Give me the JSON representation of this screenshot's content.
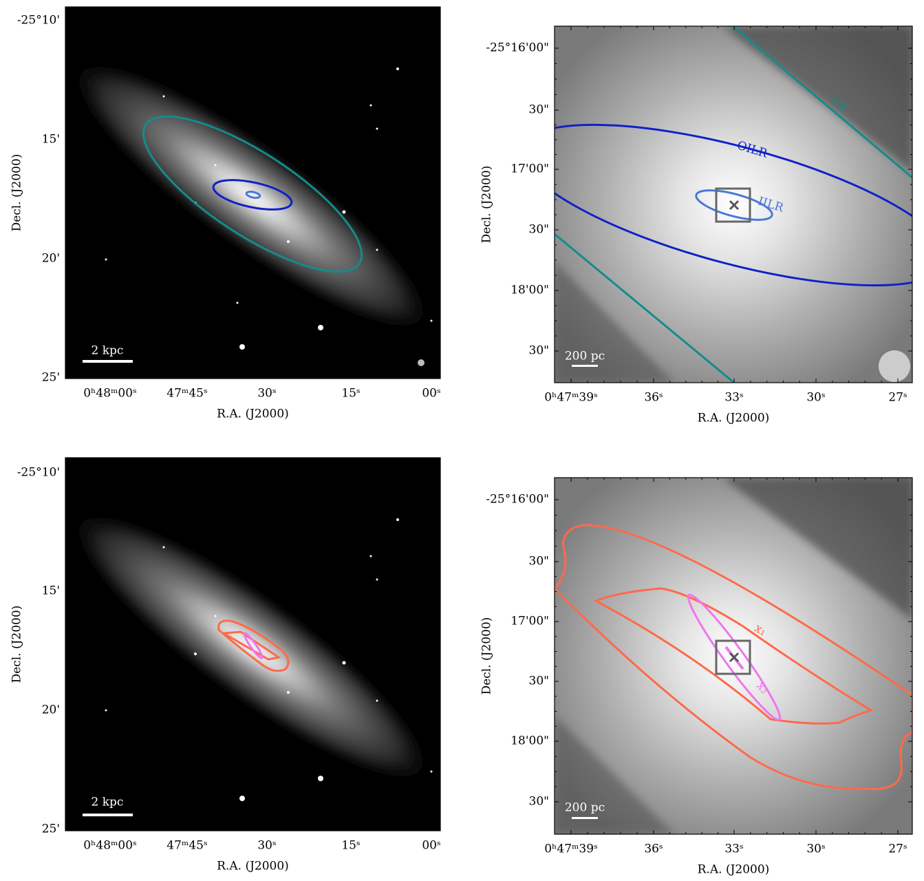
{
  "panels": [
    {
      "x_label": "R.A. (J2000)",
      "y_label": "Decl. (J2000)",
      "x_tick_labels": [
        "0ʰ48ᵐ00ˢ",
        "47ᵐ45ˢ",
        "30ˢ",
        "15ˢ",
        "00ˢ"
      ],
      "y_tick_labels": [
        "-25°10'",
        "15'",
        "20'",
        "25'"
      ],
      "scale_bar": "2 kpc"
    },
    {
      "x_label": "R.A. (J2000)",
      "y_label": "Decl. (J2000)",
      "x_tick_labels": [
        "0ʰ47ᵐ39ˢ",
        "36ˢ",
        "33ˢ",
        "30ˢ",
        "27ˢ"
      ],
      "y_tick_labels": [
        "-25°16'00\"",
        "30\"",
        "17'00\"",
        "30\"",
        "18'00\"",
        "30\""
      ],
      "scale_bar": "200 pc",
      "annotations": [
        "CR",
        "OILR",
        "IILR"
      ]
    },
    {
      "x_label": "R.A. (J2000)",
      "y_label": "Decl. (J2000)",
      "x_tick_labels": [
        "0ʰ48ᵐ00ˢ",
        "47ᵐ45ˢ",
        "30ˢ",
        "15ˢ",
        "00ˢ"
      ],
      "y_tick_labels": [
        "-25°10'",
        "15'",
        "20'",
        "25'"
      ],
      "scale_bar": "2 kpc"
    },
    {
      "x_label": "R.A. (J2000)",
      "y_label": "Decl. (J2000)",
      "x_tick_labels": [
        "0ʰ47ᵐ39ˢ",
        "36ˢ",
        "33ˢ",
        "30ˢ",
        "27ˢ"
      ],
      "y_tick_labels": [
        "-25°16'00\"",
        "30\"",
        "17'00\"",
        "30\"",
        "18'00\"",
        "30\""
      ],
      "scale_bar": "200 pc",
      "annotations": [
        "x₁",
        "x₂"
      ]
    }
  ]
}
